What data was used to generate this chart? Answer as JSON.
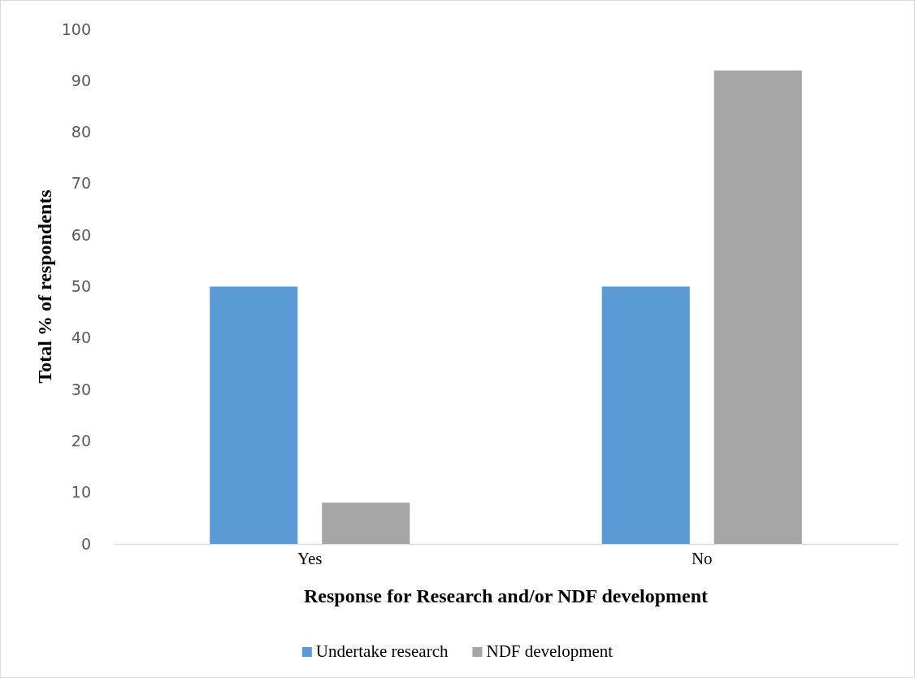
{
  "chart_data": {
    "type": "bar",
    "xlabel": "Response for Research and/or NDF development",
    "ylabel": "Total % of respondents",
    "categories": [
      "Yes",
      "No"
    ],
    "series": [
      {
        "name": "Undertake research",
        "color": "#5b9bd5",
        "values": [
          50,
          50
        ]
      },
      {
        "name": "NDF development",
        "color": "#a5a5a5",
        "values": [
          8,
          92
        ]
      }
    ],
    "ylim": [
      0,
      100
    ],
    "yticks": [
      0,
      10,
      20,
      30,
      40,
      50,
      60,
      70,
      80,
      90,
      100
    ],
    "grid": false,
    "legend": "bottom"
  }
}
